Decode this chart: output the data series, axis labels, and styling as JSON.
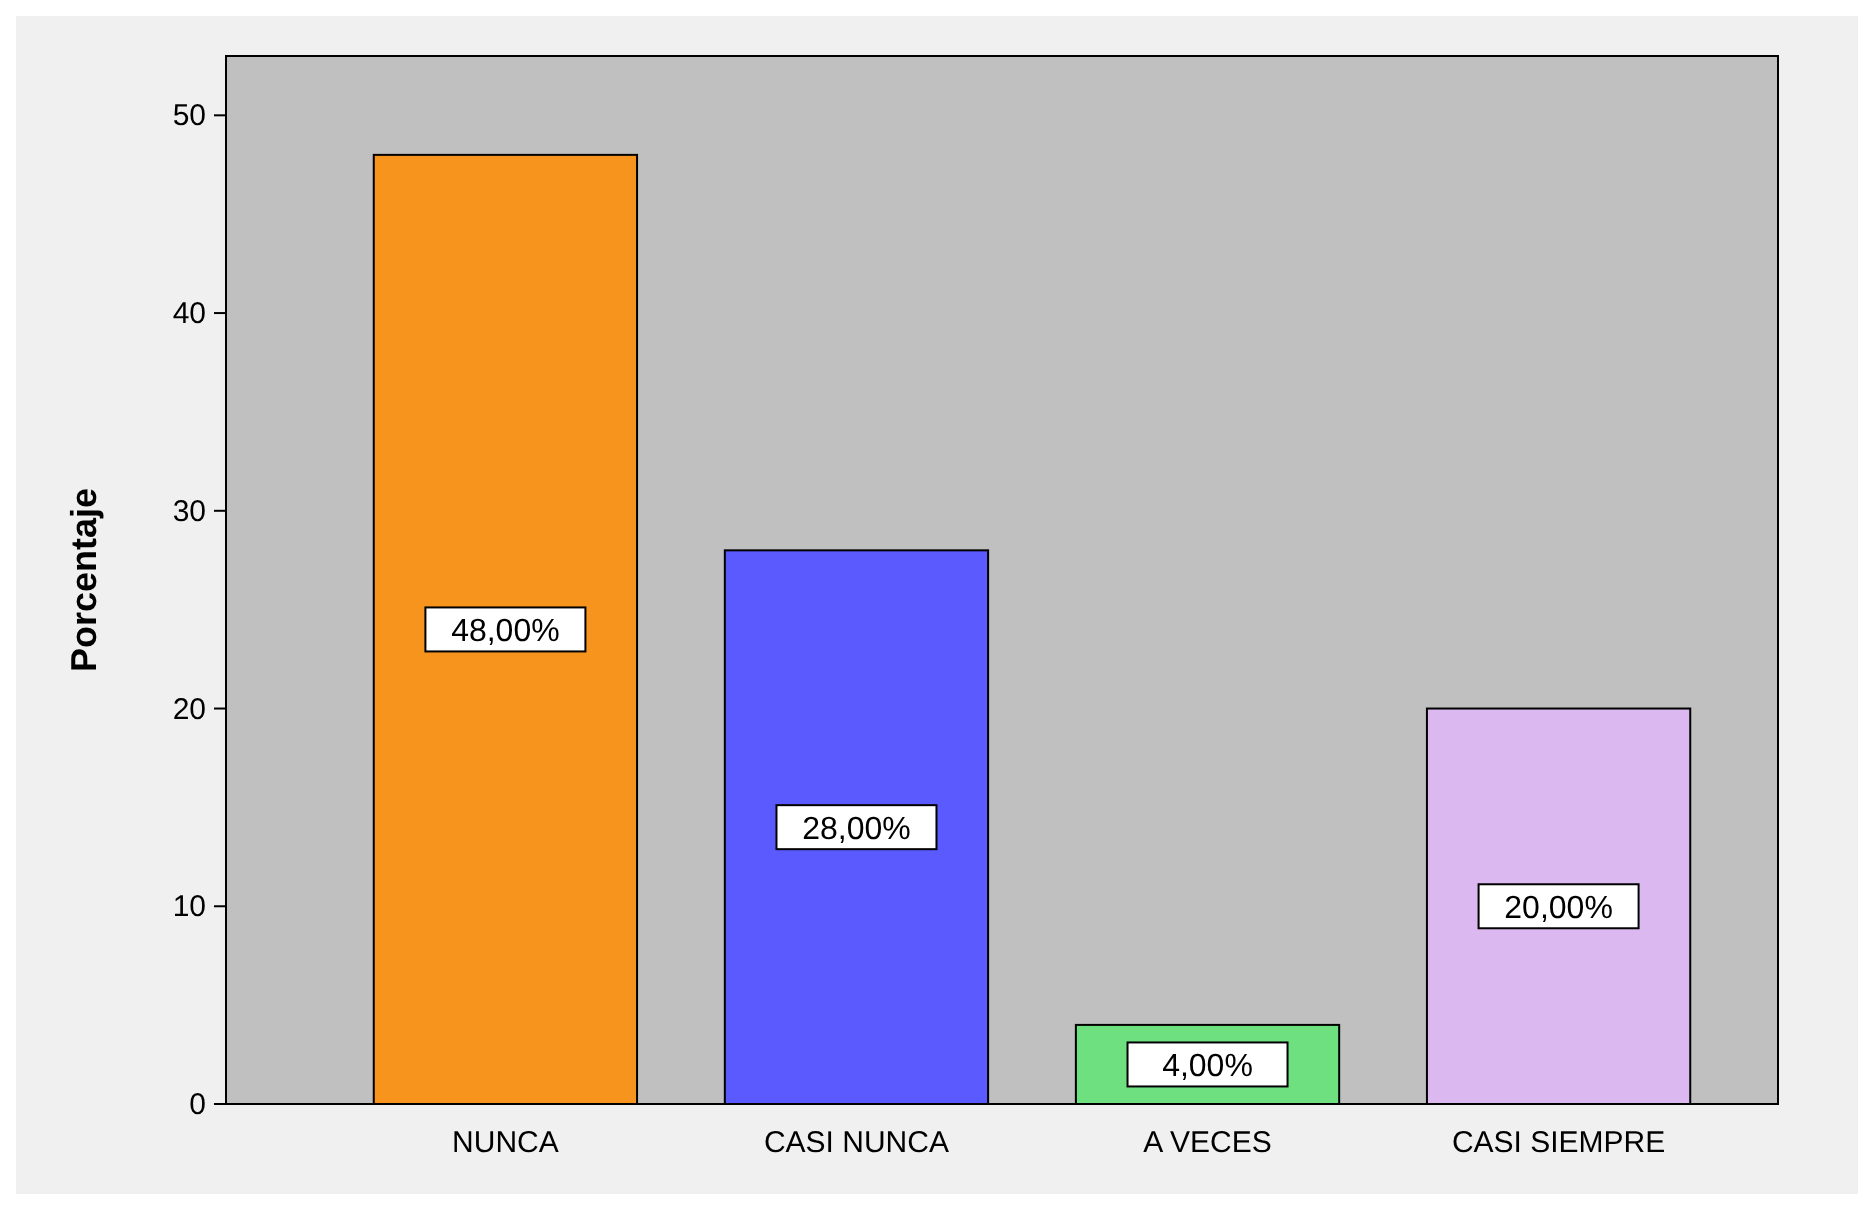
{
  "chart_data": {
    "type": "bar",
    "ylabel": "Porcentaje",
    "categories": [
      "NUNCA",
      "CASI NUNCA",
      "A VECES",
      "CASI SIEMPRE"
    ],
    "values": [
      48,
      28,
      4,
      20
    ],
    "colors": [
      "#f7941d",
      "#5a5aff",
      "#6fe07f",
      "#dcb8f0"
    ],
    "value_labels": [
      "48,00%",
      "28,00%",
      "4,00%",
      "20,00%"
    ],
    "ylim": [
      0,
      53
    ],
    "yticks": [
      0,
      10,
      20,
      30,
      40,
      50
    ],
    "grid": false
  }
}
